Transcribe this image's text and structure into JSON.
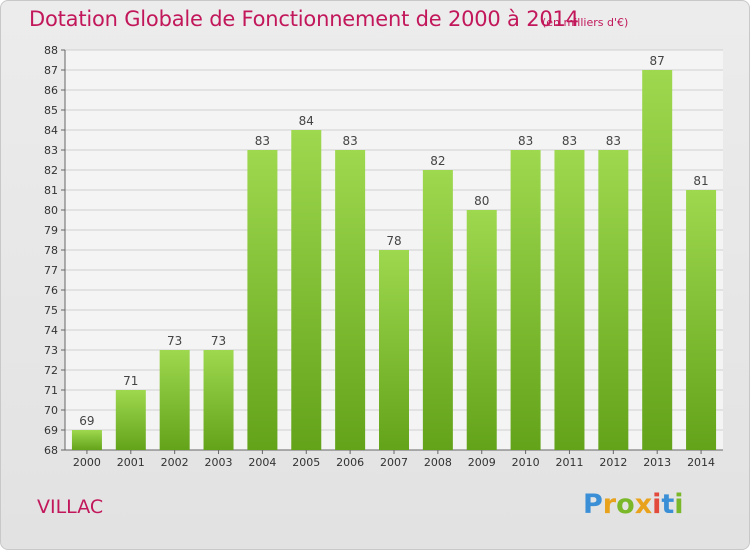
{
  "header": {
    "title": "Dotation Globale de Fonctionnement de 2000 à 2014",
    "subtitle": "(en milliers d'€)"
  },
  "footer": {
    "commune": "VILLAC",
    "logo_text": "Proxiti"
  },
  "colors": {
    "title": "#c2185b",
    "bar_light": "#9ed84f",
    "bar_dark": "#63a31a",
    "grid": "#cfcfcf"
  },
  "chart_data": {
    "type": "bar",
    "categories": [
      "2000",
      "2001",
      "2002",
      "2003",
      "2004",
      "2005",
      "2006",
      "2007",
      "2008",
      "2009",
      "2010",
      "2011",
      "2012",
      "2013",
      "2014"
    ],
    "values": [
      69,
      71,
      73,
      73,
      83,
      84,
      83,
      78,
      82,
      80,
      83,
      83,
      83,
      87,
      81
    ],
    "ylim": [
      68,
      88
    ],
    "ytick_step": 1,
    "grid": true,
    "data_labels": true
  }
}
